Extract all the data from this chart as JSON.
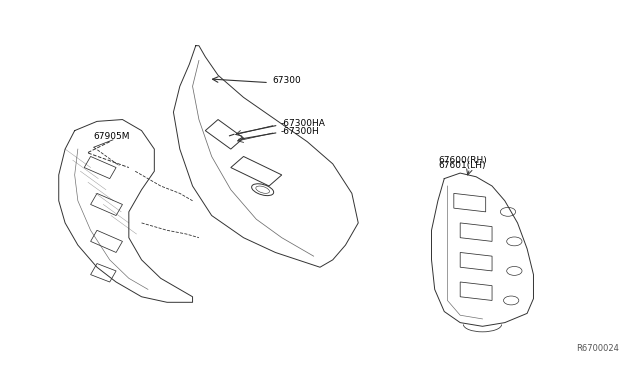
{
  "bg_color": "#ffffff",
  "line_color": "#333333",
  "label_color": "#000000",
  "fig_width": 6.4,
  "fig_height": 3.72,
  "dpi": 100,
  "ref_number": "R6700024",
  "parts": [
    {
      "id": "67300",
      "label": "67300"
    },
    {
      "id": "67300HA",
      "label": "-67300HA"
    },
    {
      "id": "67300H",
      "label": "-67300H"
    },
    {
      "id": "67905M",
      "label": "67905M"
    },
    {
      "id": "67600RH",
      "label": "67600(RH)"
    },
    {
      "id": "67601LH",
      "label": "67601(LH)"
    }
  ],
  "center_panel": {
    "x": [
      0.36,
      0.3,
      0.25,
      0.26,
      0.28,
      0.34,
      0.4,
      0.5,
      0.55,
      0.56,
      0.54,
      0.52,
      0.48,
      0.44,
      0.42,
      0.4,
      0.38,
      0.36
    ],
    "y": [
      0.82,
      0.75,
      0.65,
      0.55,
      0.45,
      0.35,
      0.28,
      0.22,
      0.25,
      0.35,
      0.45,
      0.52,
      0.58,
      0.65,
      0.7,
      0.75,
      0.78,
      0.82
    ]
  },
  "left_panel": {
    "x": [
      0.1,
      0.08,
      0.08,
      0.1,
      0.14,
      0.2,
      0.26,
      0.28,
      0.28,
      0.26,
      0.22,
      0.18,
      0.14,
      0.12,
      0.1
    ],
    "y": [
      0.62,
      0.55,
      0.45,
      0.38,
      0.3,
      0.24,
      0.22,
      0.28,
      0.4,
      0.5,
      0.58,
      0.64,
      0.66,
      0.65,
      0.62
    ]
  },
  "right_panel": {
    "x": [
      0.68,
      0.66,
      0.64,
      0.64,
      0.66,
      0.7,
      0.76,
      0.8,
      0.82,
      0.82,
      0.8,
      0.76,
      0.72,
      0.7,
      0.68
    ],
    "y": [
      0.5,
      0.44,
      0.36,
      0.28,
      0.2,
      0.16,
      0.16,
      0.2,
      0.28,
      0.38,
      0.46,
      0.52,
      0.54,
      0.53,
      0.5
    ]
  }
}
